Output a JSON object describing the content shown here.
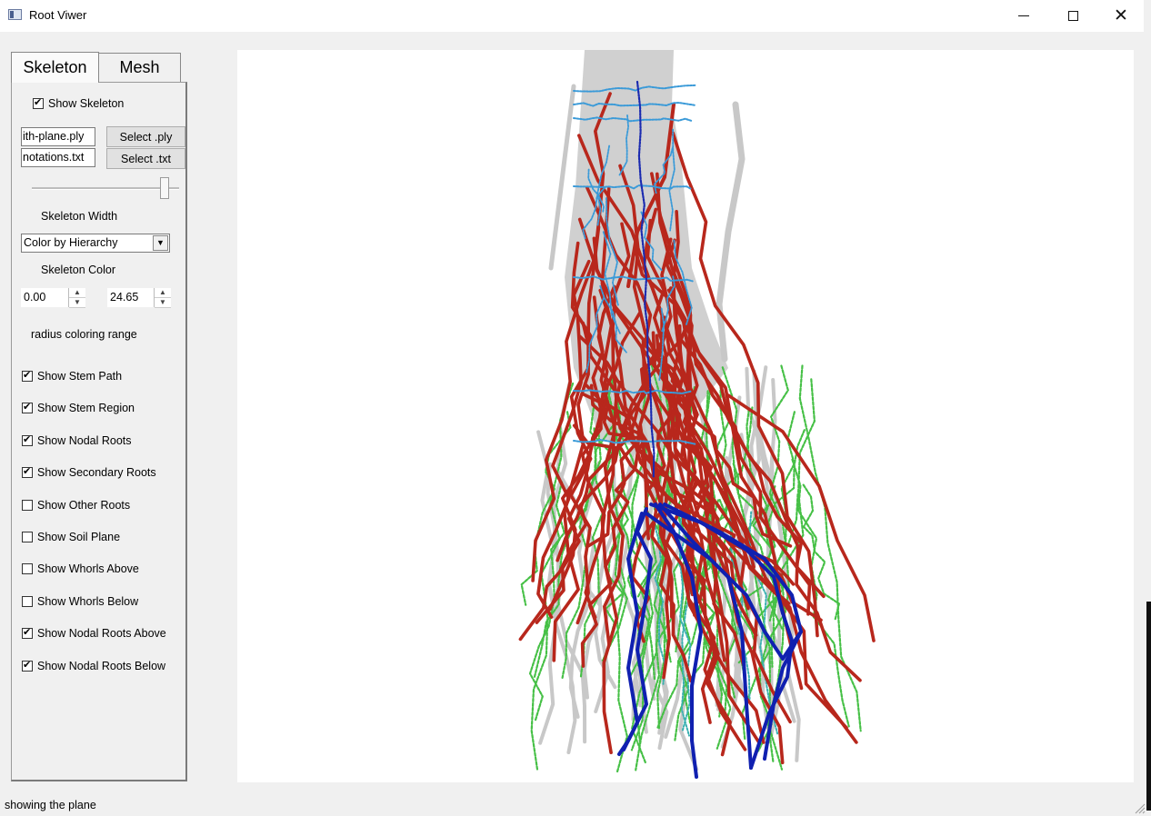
{
  "window": {
    "title": "Root Viwer",
    "controls": {
      "minimize": "minimize-icon",
      "maximize": "maximize-icon",
      "close": "✕"
    }
  },
  "tabs": [
    {
      "label": "Skeleton",
      "active": true
    },
    {
      "label": "Mesh",
      "active": false
    }
  ],
  "skeleton_panel": {
    "show_skeleton": {
      "label": "Show Skeleton",
      "checked": true
    },
    "ply_field": "ith-plane.ply",
    "txt_field": "notations.txt",
    "select_ply_label": "Select .ply",
    "select_txt_label": "Select .txt",
    "width_slider_value": 0.9,
    "skeleton_width_label": "Skeleton Width",
    "color_mode": "Color by Hierarchy",
    "skeleton_color_label": "Skeleton Color",
    "range_min": "0.00",
    "range_max": "24.65",
    "range_label": "radius coloring range",
    "checkboxes": [
      {
        "label": "Show Stem Path",
        "checked": true
      },
      {
        "label": "Show Stem Region",
        "checked": true
      },
      {
        "label": "Show Nodal Roots",
        "checked": true
      },
      {
        "label": "Show Secondary Roots",
        "checked": true
      },
      {
        "label": "Show Other Roots",
        "checked": false
      },
      {
        "label": "Show Soil Plane",
        "checked": false
      },
      {
        "label": "Show Whorls Above",
        "checked": false
      },
      {
        "label": "Show Whorls Below",
        "checked": false
      },
      {
        "label": "Show Nodal Roots Above",
        "checked": true
      },
      {
        "label": "Show Nodal Roots Below",
        "checked": true
      }
    ]
  },
  "viewer": {
    "colors": {
      "mesh": "#c8c8c8",
      "stem_region": "#3a9ad8",
      "stem_path": "#1a2ab0",
      "nodal_roots_above": "#b8271c",
      "nodal_roots_below": "#1020b0",
      "secondary_roots": "#46c046",
      "teal_roots": "#3ab0b0"
    }
  },
  "status_bar": {
    "text": "showing the plane"
  }
}
